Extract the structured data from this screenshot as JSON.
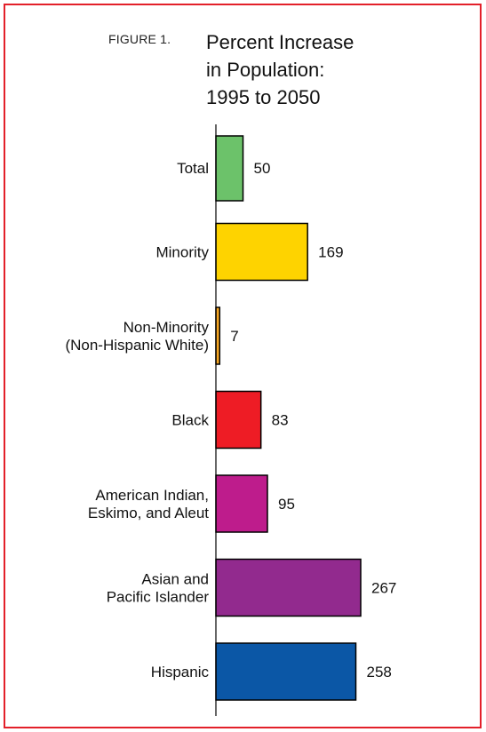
{
  "figure_label": "FIGURE 1.",
  "title_lines": [
    "Percent Increase",
    "in Population:",
    "1995 to 2050"
  ],
  "colors": {
    "frame": "#e3202a",
    "axis": "#000000"
  },
  "chart_data": {
    "type": "bar",
    "orientation": "horizontal",
    "title": "Percent Increase in Population: 1995 to 2050",
    "xlabel": "",
    "ylabel": "",
    "categories": [
      [
        "Total"
      ],
      [
        "Minority"
      ],
      [
        "Non-Minority",
        "(Non-Hispanic White)"
      ],
      [
        "Black"
      ],
      [
        "American Indian,",
        "Eskimo, and Aleut"
      ],
      [
        "Asian and",
        "Pacific Islander"
      ],
      [
        "Hispanic"
      ]
    ],
    "values": [
      50,
      169,
      7,
      83,
      95,
      267,
      258
    ],
    "value_labels": [
      "50",
      "169",
      "7",
      "83",
      "95",
      "267",
      "258"
    ],
    "bar_colors": [
      "#6cc26a",
      "#fed300",
      "#f6a623",
      "#ee1c25",
      "#be1c8c",
      "#922a8e",
      "#0b57a6"
    ],
    "xlim": [
      0,
      267
    ],
    "grid": false,
    "legend": "none"
  }
}
